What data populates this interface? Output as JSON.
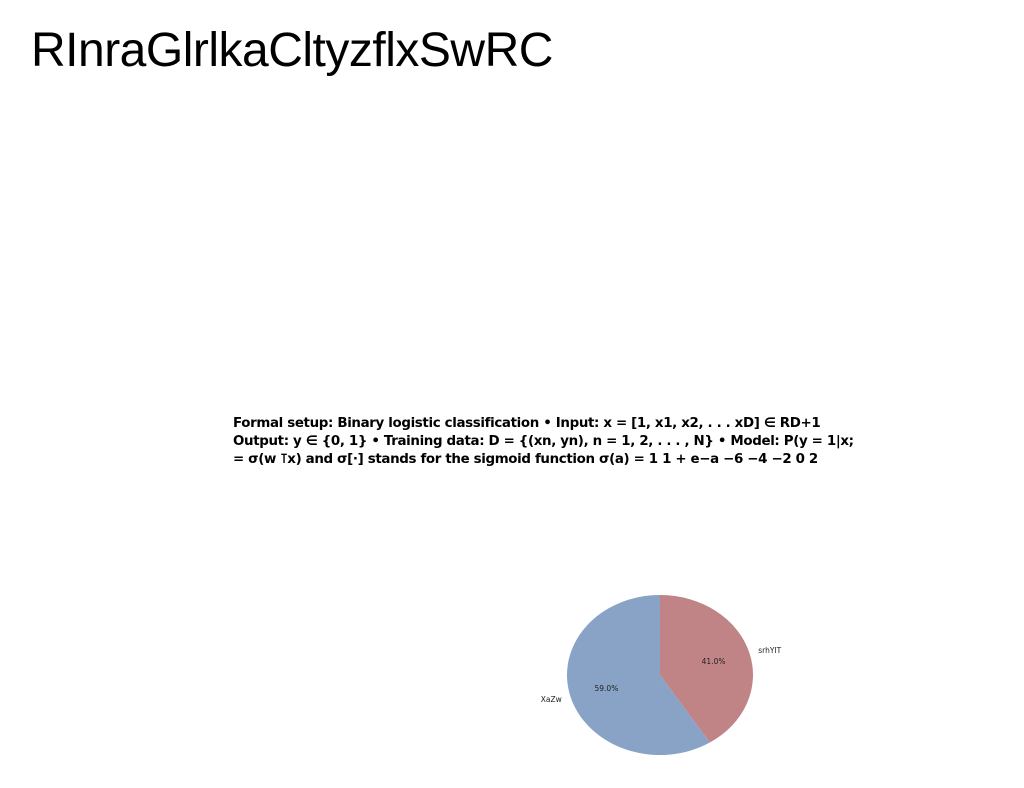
{
  "page": {
    "title": "RInraGlrlkaCltyzflxSwRC"
  },
  "formal_text": {
    "lines": [
      "Formal setup: Binary logistic classification • Input: x = [1, x1, x2, . . . xD] ∈ RD+1",
      "Output: y ∈ {0, 1} • Training data: D = {(xn, yn), n = 1, 2, . . . , N} • Model: P(y = 1|x;",
      "= σ(w ⊺x) and σ[·] stands for the sigmoid function σ(a) = 1 1 + e−a −6 −4 −2 0 2"
    ]
  },
  "chart_data": {
    "type": "pie",
    "start_angle_deg": 90,
    "direction": "clockwise",
    "categories": [
      "srhYIT",
      "XaZw"
    ],
    "values": [
      41.0,
      59.0
    ],
    "value_labels": [
      "41.0%",
      "59.0%"
    ],
    "colors": [
      "#c08486",
      "#88a3c6"
    ],
    "title": "",
    "legend": "none"
  }
}
